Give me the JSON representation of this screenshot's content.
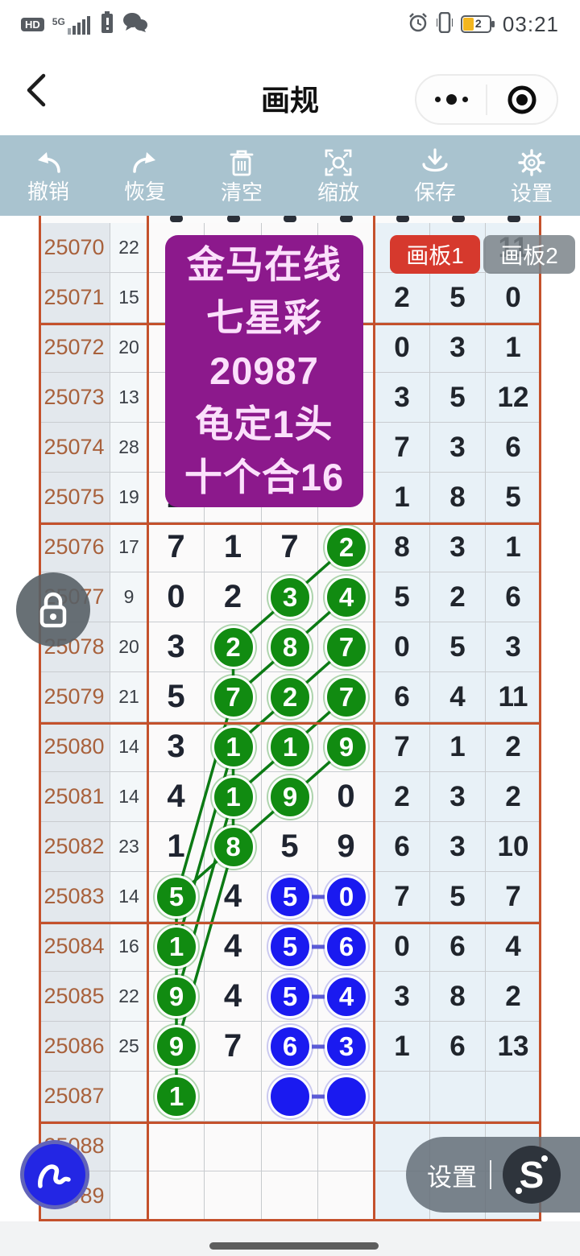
{
  "status_bar": {
    "hd": "HD",
    "network": "5G",
    "battery_level": "2",
    "time": "03:21",
    "left_icons": [
      "hd-badge",
      "signal-bars-icon",
      "battery-warning-icon",
      "wechat-icon"
    ],
    "right_icons": [
      "alarm-icon",
      "vibrate-icon",
      "battery-icon"
    ]
  },
  "nav": {
    "title": "画规",
    "back_icon": "chevron-left-icon",
    "capsule_icons": [
      "more-dots-icon",
      "target-icon"
    ]
  },
  "toolbar": {
    "items": [
      {
        "label": "撤销",
        "icon": "undo-icon"
      },
      {
        "label": "恢复",
        "icon": "redo-icon"
      },
      {
        "label": "清空",
        "icon": "trash-icon"
      },
      {
        "label": "缩放",
        "icon": "zoom-expand-icon"
      },
      {
        "label": "保存",
        "icon": "save-icon"
      },
      {
        "label": "设置",
        "icon": "gear-icon"
      }
    ]
  },
  "boards": {
    "board1_label": "画板1",
    "board2_label": "画板2"
  },
  "overlay_card": {
    "lines": [
      "金马在线",
      "七星彩",
      "20987",
      "龟定1头",
      "十个合16"
    ]
  },
  "bottom_menu": {
    "settings_label": "设置",
    "logo_text": "S"
  },
  "floating": {
    "lock_icon": "lock-icon",
    "pen_icon": "pen-scribble-icon"
  },
  "colors": {
    "toolbar_bg": "#a9c3cf",
    "section_line": "#c4512c",
    "grid_line": "#c6cacd",
    "period_text": "#a8613c",
    "green_circle": "#118b11",
    "blue_circle": "#1a1af0",
    "purple_card": "#8c198c",
    "board1_bg": "#d6392d",
    "board2_bg": "#7a8288",
    "right_cell_bg": "#e8f1f7"
  },
  "table": {
    "rows": [
      {
        "period": "25070",
        "count": "22",
        "digits": [
          {},
          {},
          {},
          {}
        ],
        "right": [
          "",
          "",
          "11"
        ],
        "note": "digits hidden by overlay card; right cols 1-2 hidden by board buttons"
      },
      {
        "period": "25071",
        "count": "15",
        "digits": [
          {},
          {},
          {},
          {}
        ],
        "right": [
          "2",
          "5",
          "0"
        ]
      },
      {
        "period": "25072",
        "count": "20",
        "digits": [
          {},
          {},
          {},
          {}
        ],
        "right": [
          "0",
          "3",
          "1"
        ]
      },
      {
        "period": "25073",
        "count": "13",
        "digits": [
          {},
          {},
          {},
          {}
        ],
        "right": [
          "3",
          "5",
          "12"
        ]
      },
      {
        "period": "25074",
        "count": "28",
        "digits": [
          {},
          {},
          {},
          {}
        ],
        "right": [
          "7",
          "3",
          "6"
        ]
      },
      {
        "period": "25075",
        "count": "19",
        "digits": [
          {
            "v": "2"
          },
          {},
          {},
          {}
        ],
        "right": [
          "1",
          "8",
          "5"
        ]
      },
      {
        "period": "25076",
        "count": "17",
        "digits": [
          {
            "v": "7"
          },
          {
            "v": "1"
          },
          {
            "v": "7"
          },
          {
            "v": "2",
            "m": "g"
          }
        ],
        "right": [
          "8",
          "3",
          "1"
        ]
      },
      {
        "period": "25077",
        "count": "9",
        "digits": [
          {
            "v": "0"
          },
          {
            "v": "2"
          },
          {
            "v": "3",
            "m": "g"
          },
          {
            "v": "4",
            "m": "g"
          }
        ],
        "right": [
          "5",
          "2",
          "6"
        ]
      },
      {
        "period": "25078",
        "count": "20",
        "digits": [
          {
            "v": "3"
          },
          {
            "v": "2",
            "m": "g"
          },
          {
            "v": "8",
            "m": "g"
          },
          {
            "v": "7",
            "m": "g"
          }
        ],
        "right": [
          "0",
          "5",
          "3"
        ]
      },
      {
        "period": "25079",
        "count": "21",
        "digits": [
          {
            "v": "5"
          },
          {
            "v": "7",
            "m": "g"
          },
          {
            "v": "2",
            "m": "g"
          },
          {
            "v": "7",
            "m": "g"
          }
        ],
        "right": [
          "6",
          "4",
          "11"
        ]
      },
      {
        "period": "25080",
        "count": "14",
        "digits": [
          {
            "v": "3"
          },
          {
            "v": "1",
            "m": "g"
          },
          {
            "v": "1",
            "m": "g"
          },
          {
            "v": "9",
            "m": "g"
          }
        ],
        "right": [
          "7",
          "1",
          "2"
        ]
      },
      {
        "period": "25081",
        "count": "14",
        "digits": [
          {
            "v": "4"
          },
          {
            "v": "1",
            "m": "g"
          },
          {
            "v": "9",
            "m": "g"
          },
          {
            "v": "0"
          }
        ],
        "right": [
          "2",
          "3",
          "2"
        ]
      },
      {
        "period": "25082",
        "count": "23",
        "digits": [
          {
            "v": "1"
          },
          {
            "v": "8",
            "m": "g"
          },
          {
            "v": "5"
          },
          {
            "v": "9"
          }
        ],
        "right": [
          "6",
          "3",
          "10"
        ]
      },
      {
        "period": "25083",
        "count": "14",
        "digits": [
          {
            "v": "5",
            "m": "g"
          },
          {
            "v": "4"
          },
          {
            "v": "5",
            "m": "b"
          },
          {
            "v": "0",
            "m": "b"
          }
        ],
        "right": [
          "7",
          "5",
          "7"
        ]
      },
      {
        "period": "25084",
        "count": "16",
        "digits": [
          {
            "v": "1",
            "m": "g"
          },
          {
            "v": "4"
          },
          {
            "v": "5",
            "m": "b"
          },
          {
            "v": "6",
            "m": "b"
          }
        ],
        "right": [
          "0",
          "6",
          "4"
        ]
      },
      {
        "period": "25085",
        "count": "22",
        "digits": [
          {
            "v": "9",
            "m": "g"
          },
          {
            "v": "4"
          },
          {
            "v": "5",
            "m": "b"
          },
          {
            "v": "4",
            "m": "b"
          }
        ],
        "right": [
          "3",
          "8",
          "2"
        ]
      },
      {
        "period": "25086",
        "count": "25",
        "digits": [
          {
            "v": "9",
            "m": "g"
          },
          {
            "v": "7"
          },
          {
            "v": "6",
            "m": "b"
          },
          {
            "v": "3",
            "m": "b"
          }
        ],
        "right": [
          "1",
          "6",
          "13"
        ]
      },
      {
        "period": "25087",
        "count": "",
        "digits": [
          {
            "v": "1",
            "m": "g"
          },
          {},
          {
            "m": "bs"
          },
          {
            "m": "bs"
          }
        ],
        "right": [
          "",
          "",
          ""
        ]
      },
      {
        "period": "25088",
        "count": "",
        "digits": [
          {},
          {},
          {},
          {}
        ],
        "right": [
          "",
          "",
          ""
        ]
      },
      {
        "period": "25089",
        "count": "",
        "digits": [
          {},
          {},
          {},
          {}
        ],
        "right": [
          "",
          "",
          ""
        ]
      }
    ],
    "green_lines": [
      [
        25076,
        4,
        25077,
        3
      ],
      [
        25077,
        3,
        25078,
        2
      ],
      [
        25077,
        4,
        25078,
        3
      ],
      [
        25078,
        2,
        25079,
        2
      ],
      [
        25078,
        3,
        25079,
        2
      ],
      [
        25078,
        4,
        25079,
        3
      ],
      [
        25079,
        3,
        25080,
        2
      ],
      [
        25079,
        4,
        25080,
        3
      ],
      [
        25080,
        2,
        25081,
        2
      ],
      [
        25080,
        3,
        25081,
        2
      ],
      [
        25080,
        4,
        25081,
        3
      ],
      [
        25081,
        2,
        25082,
        2
      ],
      [
        25081,
        3,
        25082,
        2
      ],
      [
        25082,
        2,
        25083,
        1
      ],
      [
        25079,
        2,
        25083,
        1
      ],
      [
        25080,
        2,
        25084,
        1
      ],
      [
        25081,
        2,
        25085,
        1
      ],
      [
        25082,
        2,
        25086,
        1
      ],
      [
        25083,
        1,
        25084,
        1
      ],
      [
        25084,
        1,
        25085,
        1
      ],
      [
        25085,
        1,
        25086,
        1
      ],
      [
        25086,
        1,
        25087,
        1
      ]
    ],
    "dash_pair_rows": [
      25083,
      25084,
      25085,
      25086,
      25087
    ]
  }
}
